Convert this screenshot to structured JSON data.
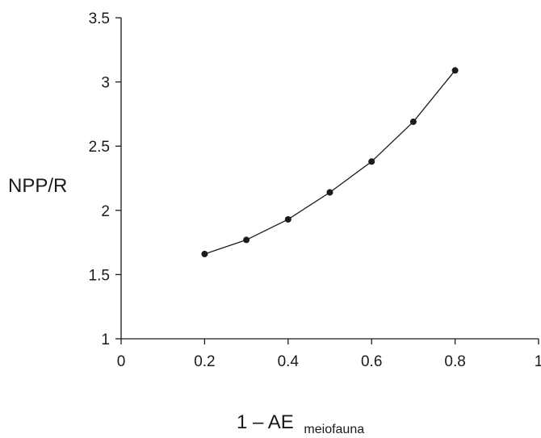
{
  "chart_data": {
    "type": "line",
    "title": "",
    "xlabel": "1 – AE",
    "xlabel_subscript": "meiofauna",
    "ylabel": "NPP/R",
    "xlim": [
      0,
      1
    ],
    "ylim": [
      1,
      3.5
    ],
    "x_ticks": [
      0,
      0.2,
      0.4,
      0.6,
      0.8,
      1
    ],
    "x_tick_labels": [
      "0",
      "0.2",
      "0.4",
      "0.6",
      "0.8",
      "1"
    ],
    "y_ticks": [
      1,
      1.5,
      2,
      2.5,
      3,
      3.5
    ],
    "y_tick_labels": [
      "1",
      "1.5",
      "2",
      "2.5",
      "3",
      "3.5"
    ],
    "grid": false,
    "legend": "none",
    "series": [
      {
        "x": [
          0.2,
          0.3,
          0.4,
          0.5,
          0.6,
          0.7,
          0.8
        ],
        "y": [
          1.66,
          1.77,
          1.93,
          2.14,
          2.38,
          2.69,
          3.09
        ],
        "color": "#1a1a1a",
        "marker": "circle"
      }
    ]
  }
}
